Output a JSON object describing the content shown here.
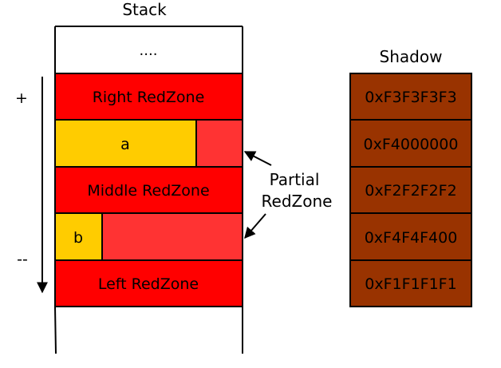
{
  "stack": {
    "title": "Stack",
    "ellipsis": "....",
    "sign_plus": "+",
    "sign_minus": "--",
    "rows": {
      "right_redzone": "Right RedZone",
      "a": "a",
      "middle_redzone": "Middle RedZone",
      "b": "b",
      "left_redzone": "Left RedZone"
    }
  },
  "partial_label": {
    "line1": "Partial",
    "line2": "RedZone"
  },
  "shadow": {
    "title": "Shadow",
    "values": [
      "0xF3F3F3F3",
      "0xF4000000",
      "0xF2F2F2F2",
      "0xF4F4F400",
      "0xF1F1F1F1"
    ]
  },
  "colors": {
    "redzone": "#ff0000",
    "partial_redzone": "#ff3333",
    "variable": "#ffcc00",
    "shadow_cell": "#993300",
    "outline": "#000000"
  }
}
